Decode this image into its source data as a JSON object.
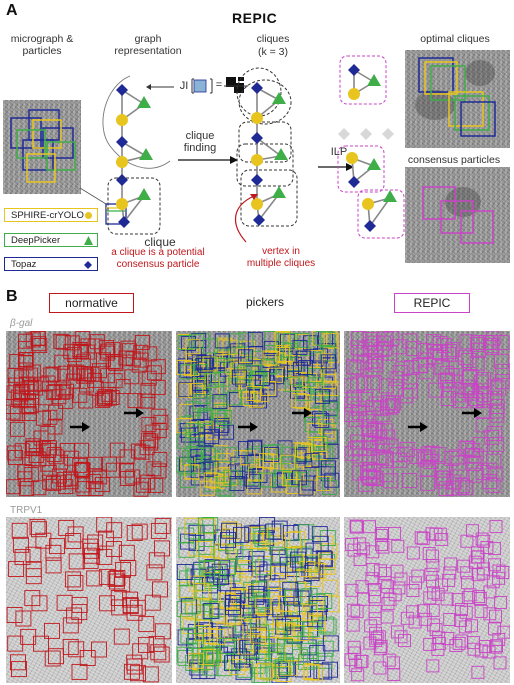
{
  "panel_a": {
    "letter": "A",
    "title": "REPIC",
    "col_labels": {
      "micrograph": "micrograph &\nparticles",
      "graph": "graph\nrepresentation",
      "cliques": "cliques",
      "cliques_k": "(k = 3)",
      "optimal": "optimal cliques",
      "consensus": "consensus particles"
    },
    "ji_label": "JI",
    "ji_equals": "=",
    "arrow_clique_finding": "clique\nfinding",
    "arrow_ilp": "ILP",
    "clique_label": "clique",
    "annotation_clique": "a clique is a potential\nconsensus particle",
    "annotation_vertex": "vertex in\nmultiple cliques",
    "legend": [
      {
        "name": "SPHIRE-crYOLO",
        "color": "#e8c51e",
        "marker": "circle"
      },
      {
        "name": "DeepPicker",
        "color": "#3fae49",
        "marker": "triangle"
      },
      {
        "name": "Topaz",
        "color": "#1f2a96",
        "marker": "diamond"
      }
    ]
  },
  "panel_b": {
    "letter": "B",
    "headers": {
      "normative": "normative",
      "pickers": "pickers",
      "repic": "REPIC"
    },
    "rows": [
      {
        "label": "β-gal"
      },
      {
        "label": "TRPV1"
      }
    ]
  },
  "colors": {
    "crYOLO": "#e8c51e",
    "DeepPicker": "#3fae49",
    "Topaz": "#1f2a96",
    "normative": "#c0171c",
    "REPIC": "#c944c6",
    "annotation": "#c0171c"
  }
}
